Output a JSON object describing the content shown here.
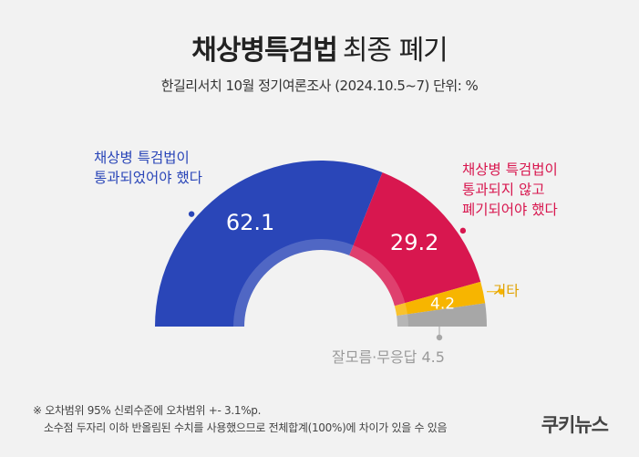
{
  "header": {
    "title_bold": "채상병특검법",
    "title_light": "최종 폐기",
    "subtitle": "한길리서치 10월 정기여론조사 (2024.10.5~7) 단위: %"
  },
  "chart_data": {
    "type": "pie",
    "style": "semi-donut",
    "unit": "%",
    "slices": [
      {
        "label_lines": [
          "채상병 특검법이",
          "통과되었어야 했다"
        ],
        "value": 62.1,
        "value_label": "62.1",
        "color": "#2a46b8",
        "label_color": "#2a46b8",
        "dot_color": "#2a46b8"
      },
      {
        "label_lines": [
          "채상병 특검법이",
          "통과되지 않고",
          "폐기되어야 했다"
        ],
        "value": 29.2,
        "value_label": "29.2",
        "color": "#d8174f",
        "label_color": "#d8174f",
        "dot_color": "#d8174f"
      },
      {
        "label_lines": [
          "기타"
        ],
        "value": 4.2,
        "value_label": "4.2",
        "color": "#f7b500",
        "label_color": "#e0a200",
        "dot_color": "#f7b500"
      },
      {
        "label_lines": [
          "잘모름·무응답 4.5"
        ],
        "value": 4.5,
        "value_label": "",
        "color": "#a7a7a7",
        "label_color": "#9a9a9a",
        "dot_color": "#a7a7a7"
      }
    ]
  },
  "footnote": {
    "line1": "※ 오차범위 95% 신뢰수준에 오차범위 +- 3.1%p.",
    "line2": "소수점 두자리 이하 반올림된 수치를 사용했으므로 전체합계(100%)에 차이가 있을 수 있음"
  },
  "logo": {
    "text": "쿠키뉴스"
  }
}
